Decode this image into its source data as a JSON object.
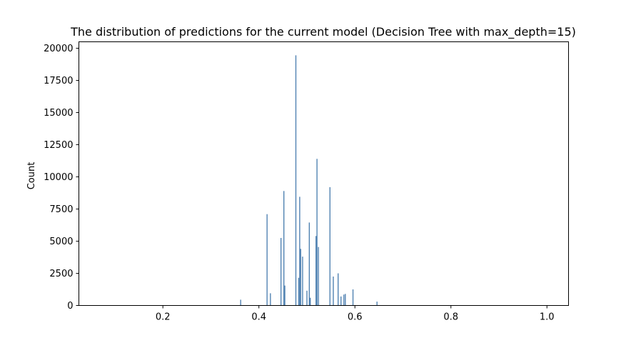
{
  "chart_data": {
    "type": "bar",
    "title": "The distribution of predictions for the current model (Decision Tree with max_depth=15)",
    "xlabel": "",
    "ylabel": "Count",
    "xlim": [
      0.025,
      1.045
    ],
    "ylim": [
      0,
      20500
    ],
    "x_ticks": [
      0.2,
      0.4,
      0.6,
      0.8,
      1.0
    ],
    "x_tick_labels": [
      "0.2",
      "0.4",
      "0.6",
      "0.8",
      "1.0"
    ],
    "y_ticks": [
      0,
      2500,
      5000,
      7500,
      10000,
      12500,
      15000,
      17500,
      20000
    ],
    "y_tick_labels": [
      "0",
      "2500",
      "5000",
      "7500",
      "10000",
      "12500",
      "15000",
      "17500",
      "20000"
    ],
    "bin_width": 0.002,
    "bar_color": "#4c7fb0",
    "grid": false,
    "bins": [
      {
        "x": 0.362,
        "count": 450
      },
      {
        "x": 0.417,
        "count": 7100
      },
      {
        "x": 0.424,
        "count": 950
      },
      {
        "x": 0.446,
        "count": 5250
      },
      {
        "x": 0.452,
        "count": 8900
      },
      {
        "x": 0.454,
        "count": 1550
      },
      {
        "x": 0.477,
        "count": 19450
      },
      {
        "x": 0.483,
        "count": 2150
      },
      {
        "x": 0.485,
        "count": 8450
      },
      {
        "x": 0.487,
        "count": 4400
      },
      {
        "x": 0.491,
        "count": 3800
      },
      {
        "x": 0.5,
        "count": 1150
      },
      {
        "x": 0.505,
        "count": 6450
      },
      {
        "x": 0.507,
        "count": 600
      },
      {
        "x": 0.519,
        "count": 5400
      },
      {
        "x": 0.521,
        "count": 11400
      },
      {
        "x": 0.524,
        "count": 4550
      },
      {
        "x": 0.548,
        "count": 9200
      },
      {
        "x": 0.555,
        "count": 2250
      },
      {
        "x": 0.565,
        "count": 2500
      },
      {
        "x": 0.571,
        "count": 700
      },
      {
        "x": 0.577,
        "count": 850
      },
      {
        "x": 0.58,
        "count": 900
      },
      {
        "x": 0.596,
        "count": 1250
      },
      {
        "x": 0.646,
        "count": 300
      }
    ]
  }
}
